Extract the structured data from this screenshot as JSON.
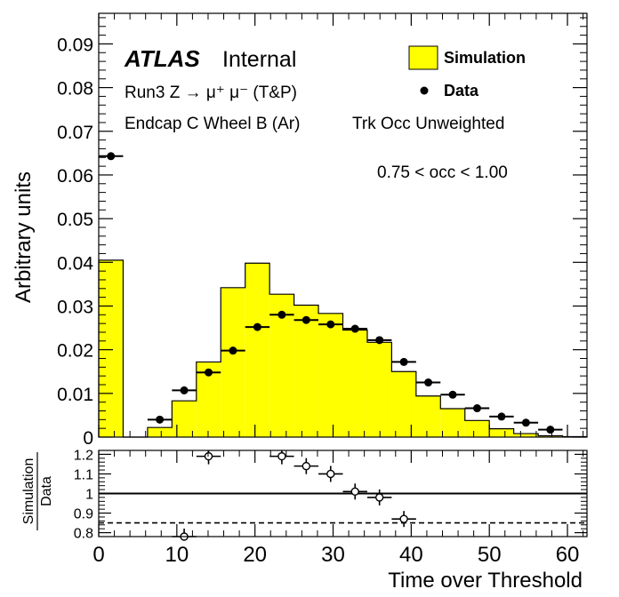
{
  "colors": {
    "simulation_fill": "#ffff00",
    "axis": "#000000",
    "data_marker": "#000000",
    "ratio_marker_fill": "#ffffff"
  },
  "labels": {
    "atlas": "ATLAS",
    "internal": "Internal",
    "line1": "Run3 Z → μ⁺ μ⁻ (T&P)",
    "line2": "Endcap C Wheel B (Ar)",
    "line3": "Trk Occ Unweighted",
    "line4": "0.75 < occ < 1.00"
  },
  "legend": {
    "simulation": "Simulation",
    "data": "Data",
    "placement": "top-right"
  },
  "chart_data": [
    {
      "type": "bar",
      "title": "",
      "xlabel": "",
      "ylabel": "Arbitrary units",
      "xlim": [
        0,
        62.5
      ],
      "ylim": [
        0,
        0.097
      ],
      "x_ticks": [
        0,
        10,
        20,
        30,
        40,
        50,
        60
      ],
      "y_ticks": [
        0,
        0.01,
        0.02,
        0.03,
        0.04,
        0.05,
        0.06,
        0.07,
        0.08,
        0.09
      ],
      "y_tick_labels": [
        "0",
        "0.01",
        "0.02",
        "0.03",
        "0.04",
        "0.05",
        "0.06",
        "0.07",
        "0.08",
        "0.09"
      ],
      "bin_edges": [
        0,
        3.125,
        6.25,
        9.375,
        12.5,
        15.625,
        18.75,
        21.875,
        25,
        28.125,
        31.25,
        34.375,
        37.5,
        40.625,
        43.75,
        46.875,
        50,
        53.125,
        56.25,
        59.375,
        62.5
      ],
      "series": [
        {
          "name": "Simulation",
          "style": "filled-histogram",
          "values": [
            0.0405,
            0,
            0.0022,
            0.0083,
            0.0172,
            0.0342,
            0.0398,
            0.0327,
            0.0302,
            0.0283,
            0.0245,
            0.0217,
            0.015,
            0.0094,
            0.0065,
            0.0038,
            0.0019,
            0.0008,
            0.0003,
            0.0001
          ]
        },
        {
          "name": "Data",
          "style": "points",
          "x": [
            1.5625,
            7.8125,
            10.9375,
            14.0625,
            17.1875,
            20.3125,
            23.4375,
            26.5625,
            29.6875,
            32.8125,
            35.9375,
            39.0625,
            42.1875,
            45.3125,
            48.4375,
            51.5625,
            54.6875,
            57.8125
          ],
          "values": [
            0.0643,
            0.004,
            0.0107,
            0.0148,
            0.0198,
            0.0252,
            0.028,
            0.0268,
            0.0258,
            0.0248,
            0.0222,
            0.0172,
            0.0125,
            0.0097,
            0.0066,
            0.0047,
            0.0033,
            0.0017
          ]
        }
      ]
    },
    {
      "type": "scatter",
      "title": "",
      "xlabel": "Time over Threshold",
      "ylabel": "Simulation / Data",
      "ylabel_numerator": "Simulation",
      "ylabel_denominator": "Data",
      "xlim": [
        0,
        62.5
      ],
      "ylim": [
        0.78,
        1.22
      ],
      "x_ticks": [
        0,
        10,
        20,
        30,
        40,
        50,
        60
      ],
      "x_tick_labels": [
        "0",
        "10",
        "20",
        "30",
        "40",
        "50",
        "60"
      ],
      "y_ticks": [
        0.8,
        0.9,
        1.0,
        1.1,
        1.2
      ],
      "y_tick_labels": [
        "0.8",
        "0.9",
        "1",
        "1.1",
        "1.2"
      ],
      "reference_lines": [
        {
          "y": 1.0,
          "style": "solid"
        },
        {
          "y": 0.85,
          "style": "dashed"
        }
      ],
      "series": [
        {
          "name": "Simulation / Data",
          "style": "open-points",
          "x": [
            10.9375,
            14.0625,
            23.4375,
            26.5625,
            29.6875,
            32.8125,
            35.9375,
            39.0625
          ],
          "values": [
            0.78,
            1.19,
            1.19,
            1.14,
            1.1,
            1.01,
            0.98,
            0.87
          ]
        }
      ]
    }
  ]
}
